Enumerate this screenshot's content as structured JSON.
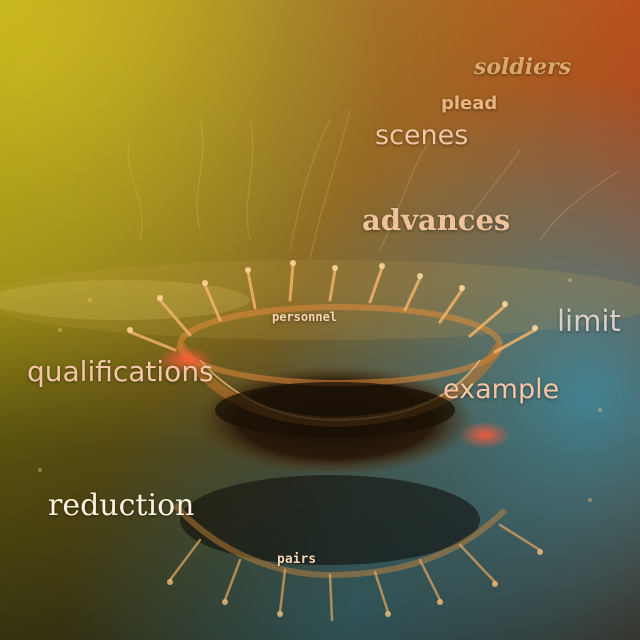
{
  "words": {
    "soldiers": "soldiers",
    "plead": "plead",
    "scenes": "scenes",
    "advances": "advances",
    "personnel": "personnel",
    "limit": "limit",
    "qualifications": "qualifications",
    "example": "example",
    "reduction": "reduction",
    "pairs": "pairs"
  },
  "colors": {
    "bg_top_left": "#b5a51a",
    "bg_top_right": "#b8501e",
    "bg_bottom": "#1f2a24",
    "reflection_blue": "#3a8fa6",
    "crown_orange": "#e08a3a",
    "word_peach": "#f4c6a6",
    "word_tan": "#d9a86a",
    "word_light": "#f2cfb6",
    "word_white": "#fff1e0",
    "word_limit": "#d8cfcf"
  }
}
